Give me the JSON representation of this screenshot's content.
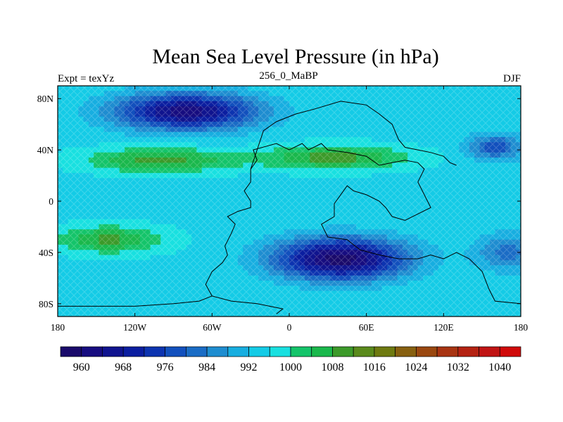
{
  "figure": {
    "title": "Mean Sea Level Pressure (in hPa)",
    "left_label": "Expt = texYz",
    "center_label": "256_0_MaBP",
    "right_label": "DJF"
  },
  "map": {
    "projection": "cylindrical-equidistant",
    "lon_range": [
      -180,
      180
    ],
    "lat_range": [
      -90,
      90
    ],
    "x_ticks": [
      {
        "value": -180,
        "label": "180"
      },
      {
        "value": -120,
        "label": "120W"
      },
      {
        "value": -60,
        "label": "60W"
      },
      {
        "value": 0,
        "label": "0"
      },
      {
        "value": 60,
        "label": "60E"
      },
      {
        "value": 120,
        "label": "120E"
      },
      {
        "value": 180,
        "label": "180"
      }
    ],
    "y_ticks": [
      {
        "value": 80,
        "label": "80N"
      },
      {
        "value": 40,
        "label": "40N"
      },
      {
        "value": 0,
        "label": "0"
      },
      {
        "value": -40,
        "label": "40S"
      },
      {
        "value": -80,
        "label": "80S"
      }
    ],
    "pressure_field_features": [
      {
        "lon": -80,
        "lat": 70,
        "value": 962,
        "spread_lon": 55,
        "spread_lat": 14
      },
      {
        "lon": 160,
        "lat": 42,
        "value": 978,
        "spread_lon": 22,
        "spread_lat": 10
      },
      {
        "lon": 40,
        "lat": -45,
        "value": 958,
        "spread_lon": 50,
        "spread_lat": 16
      },
      {
        "lon": -100,
        "lat": 32,
        "value": 1010,
        "spread_lon": 55,
        "spread_lat": 9
      },
      {
        "lon": 35,
        "lat": 34,
        "value": 1010,
        "spread_lon": 55,
        "spread_lat": 9
      },
      {
        "lon": -140,
        "lat": -30,
        "value": 1009,
        "spread_lon": 40,
        "spread_lat": 10
      },
      {
        "lon": 170,
        "lat": -40,
        "value": 982,
        "spread_lon": 25,
        "spread_lat": 14
      }
    ],
    "coastline": [
      [
        -10,
        -88
      ],
      [
        -5,
        -84
      ],
      [
        -25,
        -80
      ],
      [
        -45,
        -78
      ],
      [
        -60,
        -74
      ],
      [
        -65,
        -65
      ],
      [
        -60,
        -55
      ],
      [
        -52,
        -48
      ],
      [
        -48,
        -42
      ],
      [
        -50,
        -35
      ],
      [
        -45,
        -25
      ],
      [
        -42,
        -18
      ],
      [
        -48,
        -12
      ],
      [
        -40,
        -8
      ],
      [
        -30,
        -5
      ],
      [
        -30,
        0
      ],
      [
        -35,
        8
      ],
      [
        -30,
        15
      ],
      [
        -30,
        25
      ],
      [
        -25,
        32
      ],
      [
        -28,
        40
      ],
      [
        -10,
        45
      ],
      [
        0,
        40
      ],
      [
        10,
        45
      ],
      [
        15,
        40
      ],
      [
        25,
        45
      ],
      [
        30,
        40
      ],
      [
        45,
        38
      ],
      [
        60,
        35
      ],
      [
        70,
        28
      ],
      [
        80,
        30
      ],
      [
        90,
        32
      ],
      [
        100,
        30
      ],
      [
        105,
        25
      ],
      [
        100,
        15
      ],
      [
        105,
        5
      ],
      [
        110,
        -5
      ],
      [
        100,
        -10
      ],
      [
        90,
        -15
      ],
      [
        80,
        -12
      ],
      [
        75,
        -5
      ],
      [
        70,
        0
      ],
      [
        60,
        5
      ],
      [
        50,
        8
      ],
      [
        45,
        12
      ],
      [
        40,
        5
      ],
      [
        35,
        -2
      ],
      [
        35,
        -12
      ],
      [
        25,
        -18
      ],
      [
        30,
        -28
      ],
      [
        45,
        -30
      ],
      [
        55,
        -38
      ],
      [
        70,
        -42
      ],
      [
        85,
        -45
      ],
      [
        100,
        -45
      ],
      [
        110,
        -42
      ],
      [
        120,
        -45
      ],
      [
        130,
        -40
      ],
      [
        140,
        -45
      ],
      [
        150,
        -55
      ],
      [
        155,
        -68
      ],
      [
        160,
        -78
      ],
      [
        180,
        -80
      ]
    ],
    "coastline_north": [
      [
        -30,
        25
      ],
      [
        -25,
        40
      ],
      [
        -20,
        55
      ],
      [
        -10,
        62
      ],
      [
        5,
        68
      ],
      [
        20,
        72
      ],
      [
        40,
        78
      ],
      [
        60,
        75
      ],
      [
        70,
        68
      ],
      [
        80,
        60
      ],
      [
        85,
        48
      ],
      [
        90,
        42
      ],
      [
        100,
        40
      ],
      [
        110,
        38
      ],
      [
        120,
        35
      ],
      [
        125,
        30
      ],
      [
        130,
        28
      ]
    ],
    "antarctic_coast": [
      [
        -180,
        -82
      ],
      [
        -150,
        -82
      ],
      [
        -120,
        -82
      ],
      [
        -90,
        -80
      ],
      [
        -70,
        -78
      ],
      [
        -60,
        -74
      ]
    ]
  },
  "colorbar": {
    "colors": [
      "#1a0a6b",
      "#170d80",
      "#10148f",
      "#0b1ea0",
      "#0d34b0",
      "#1250bd",
      "#1a6cc5",
      "#1e8dd0",
      "#17aee0",
      "#14cbe6",
      "#19e0e0",
      "#14c46a",
      "#1ab84c",
      "#3c9a2a",
      "#5a8a1c",
      "#6e7a10",
      "#876010",
      "#9a4810",
      "#a83412",
      "#b42212",
      "#c01414",
      "#d00a0a"
    ],
    "labels": [
      "960",
      "968",
      "976",
      "984",
      "992",
      "1000",
      "1008",
      "1016",
      "1024",
      "1032",
      "1040"
    ],
    "min": 956,
    "step": 4
  }
}
